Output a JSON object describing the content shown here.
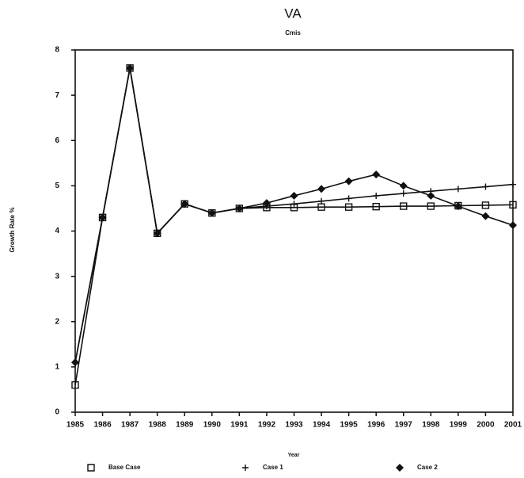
{
  "chart_data": {
    "type": "line",
    "title": "VA",
    "subtitle": "Cmis",
    "x_label": "Year",
    "y_label": "Growth Rate %",
    "x": [
      1985,
      1986,
      1987,
      1988,
      1989,
      1990,
      1991,
      1992,
      1993,
      1994,
      1995,
      1996,
      1997,
      1998,
      1999,
      2000,
      2001
    ],
    "xlim": [
      1985,
      2001
    ],
    "xticks": [
      1985,
      1986,
      1987,
      1988,
      1989,
      1990,
      1991,
      1992,
      1993,
      1994,
      1995,
      1996,
      1997,
      1998,
      1999,
      2000,
      2001
    ],
    "ylim": [
      0,
      8
    ],
    "yticks": [
      0,
      1,
      2,
      3,
      4,
      5,
      6,
      7,
      8
    ],
    "legend": "bottom",
    "series": [
      {
        "name": "Base Case",
        "color": "#111111",
        "marker": "square",
        "values": [
          0.6,
          4.3,
          7.6,
          3.95,
          4.6,
          4.4,
          4.5,
          4.52,
          4.52,
          4.53,
          4.53,
          4.54,
          4.55,
          4.55,
          4.56,
          4.57,
          4.58
        ]
      },
      {
        "name": "Case 1",
        "color": "#111111",
        "marker": "plus",
        "values": [
          1.1,
          4.3,
          7.6,
          3.95,
          4.6,
          4.4,
          4.5,
          4.55,
          4.6,
          4.66,
          4.72,
          4.78,
          4.83,
          4.88,
          4.93,
          4.98,
          5.03
        ]
      },
      {
        "name": "Case 2",
        "color": "#111111",
        "marker": "diamond",
        "values": [
          1.1,
          4.3,
          7.6,
          3.95,
          4.6,
          4.4,
          4.5,
          4.62,
          4.78,
          4.93,
          5.1,
          5.25,
          5.0,
          4.78,
          4.55,
          4.33,
          4.13
        ]
      }
    ]
  }
}
